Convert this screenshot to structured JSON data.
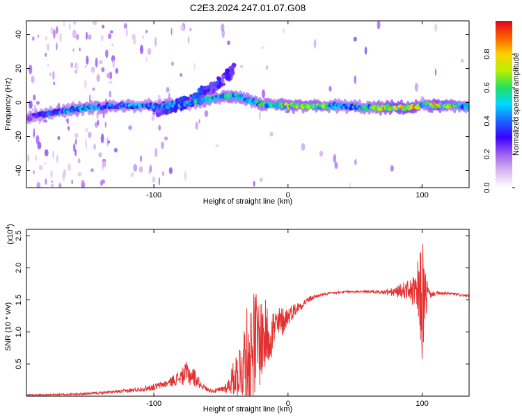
{
  "title": "C2E3.2024.247.01.07.G08",
  "colors": {
    "snr_line": "#e53030",
    "axis": "#000000"
  },
  "chart_data": [
    {
      "type": "heatmap",
      "name": "spectrogram",
      "xlabel": "Height of straight line (km)",
      "ylabel": "Frequency (Hz)",
      "xlim": [
        -195,
        135
      ],
      "ylim": [
        -50,
        48
      ],
      "xticks": [
        -100,
        0,
        100
      ],
      "xtick_labels": [
        "-100",
        "0",
        "100"
      ],
      "yticks": [
        -40,
        -20,
        0,
        20,
        40
      ],
      "ytick_labels": [
        "-40",
        "-20",
        "0",
        "20",
        "40"
      ],
      "colorbar": {
        "label": "Normalized spectral amplitude",
        "range": [
          0,
          1
        ],
        "ticks": [
          0.0,
          0.2,
          0.4,
          0.6,
          0.8
        ],
        "tick_labels": [
          "0.0",
          "0.2",
          "0.4",
          "0.6",
          "0.8"
        ],
        "colormap": [
          "#ffffff",
          "#d9b8f0",
          "#a060f0",
          "#3a00ff",
          "#1a66ff",
          "#00d8ff",
          "#20e060",
          "#b8f000",
          "#ffd000",
          "#ff6000",
          "#e00020"
        ]
      },
      "ridge": {
        "x": [
          -195,
          -170,
          -150,
          -130,
          -110,
          -95,
          -80,
          -65,
          -50,
          -40,
          -30,
          -20,
          0,
          20,
          40,
          60,
          80,
          95,
          100,
          110,
          135
        ],
        "y": [
          -9,
          -5,
          -3,
          -2,
          -2,
          -2,
          -1,
          1,
          3,
          4,
          2,
          -1,
          -2,
          -2,
          -2,
          -3,
          -3,
          -3,
          -1,
          -2,
          -2
        ],
        "amp": [
          0.3,
          0.45,
          0.55,
          0.45,
          0.5,
          0.45,
          0.5,
          0.55,
          0.6,
          0.65,
          0.55,
          0.6,
          0.7,
          0.75,
          0.5,
          0.6,
          0.95,
          0.9,
          0.4,
          0.95,
          0.5
        ]
      },
      "branch": {
        "x": [
          -100,
          -85,
          -70,
          -60,
          -50,
          -40
        ],
        "y": [
          -5,
          -2,
          2,
          8,
          12,
          20
        ],
        "amp": [
          0.3,
          0.35,
          0.4,
          0.4,
          0.35,
          0.25
        ]
      }
    },
    {
      "type": "line",
      "name": "snr",
      "xlabel": "Height of straight line (km)",
      "ylabel": "SNR (10 * v/v)",
      "multiplier_label": "(x10",
      "multiplier_exp": "4",
      "xlim": [
        -195,
        135
      ],
      "ylim": [
        0,
        2.6
      ],
      "xticks": [
        -100,
        0,
        100
      ],
      "xtick_labels": [
        "-100",
        "0",
        "100"
      ],
      "yticks": [
        0.5,
        1.0,
        1.5,
        2.0,
        2.5
      ],
      "ytick_labels": [
        "0.5",
        "1.0",
        "1.5",
        "2.0",
        "2.5"
      ],
      "envelope": {
        "x": [
          -195,
          -180,
          -160,
          -140,
          -120,
          -100,
          -90,
          -80,
          -75,
          -70,
          -65,
          -60,
          -55,
          -50,
          -45,
          -40,
          -35,
          -30,
          -25,
          -20,
          -15,
          -10,
          -5,
          0,
          5,
          10,
          15,
          20,
          25,
          30,
          40,
          50,
          60,
          70,
          80,
          85,
          90,
          95,
          98,
          100,
          102,
          104,
          106,
          110,
          120,
          135
        ],
        "mean": [
          0.02,
          0.02,
          0.03,
          0.05,
          0.08,
          0.14,
          0.2,
          0.3,
          0.35,
          0.3,
          0.18,
          0.1,
          0.08,
          0.1,
          0.15,
          0.3,
          0.45,
          0.65,
          0.8,
          0.9,
          0.95,
          1.05,
          1.15,
          1.25,
          1.35,
          1.42,
          1.5,
          1.55,
          1.58,
          1.6,
          1.62,
          1.63,
          1.63,
          1.62,
          1.62,
          1.65,
          1.66,
          1.6,
          1.55,
          1.5,
          1.55,
          1.6,
          1.58,
          1.6,
          1.6,
          1.56
        ],
        "spread": [
          0.01,
          0.01,
          0.015,
          0.02,
          0.03,
          0.05,
          0.06,
          0.12,
          0.2,
          0.15,
          0.06,
          0.03,
          0.03,
          0.05,
          0.1,
          0.3,
          0.5,
          0.8,
          0.9,
          0.7,
          0.5,
          0.35,
          0.25,
          0.15,
          0.1,
          0.07,
          0.05,
          0.03,
          0.02,
          0.02,
          0.02,
          0.02,
          0.02,
          0.03,
          0.08,
          0.12,
          0.15,
          0.3,
          0.7,
          1.0,
          0.6,
          0.2,
          0.05,
          0.03,
          0.02,
          0.02
        ]
      }
    }
  ]
}
